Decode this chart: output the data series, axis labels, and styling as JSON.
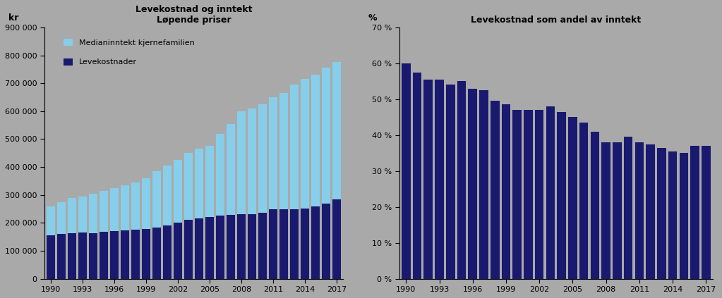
{
  "years": [
    1990,
    1991,
    1992,
    1993,
    1994,
    1995,
    1996,
    1997,
    1998,
    1999,
    2000,
    2001,
    2002,
    2003,
    2004,
    2005,
    2006,
    2007,
    2008,
    2009,
    2010,
    2011,
    2012,
    2013,
    2014,
    2015,
    2016,
    2017
  ],
  "median_income": [
    260000,
    275000,
    290000,
    295000,
    305000,
    315000,
    325000,
    335000,
    345000,
    360000,
    385000,
    405000,
    425000,
    450000,
    465000,
    475000,
    520000,
    555000,
    600000,
    610000,
    625000,
    650000,
    665000,
    695000,
    715000,
    730000,
    755000,
    775000
  ],
  "levekostnader": [
    155000,
    160000,
    162000,
    165000,
    163000,
    168000,
    170000,
    172000,
    175000,
    178000,
    183000,
    190000,
    200000,
    210000,
    215000,
    220000,
    225000,
    228000,
    230000,
    232000,
    235000,
    248000,
    250000,
    250000,
    252000,
    258000,
    270000,
    285000
  ],
  "ratio": [
    60.0,
    57.5,
    55.5,
    55.5,
    54.0,
    55.0,
    53.0,
    52.5,
    49.5,
    48.5,
    47.0,
    47.0,
    47.0,
    48.0,
    46.5,
    45.0,
    43.5,
    41.0,
    38.0,
    38.0,
    39.5,
    38.0,
    37.5,
    36.5,
    35.5,
    35.0,
    37.0,
    37.0
  ],
  "title1_line1": "Levekostnad og inntekt",
  "title1_line2": "Løpende priser",
  "title2": "Levekostnad som andel av inntekt",
  "unit1": "kr",
  "unit2": "%",
  "legend1": "Medianinntekt kjernefamilien",
  "legend2": "Levekostnader",
  "color_income": "#87CEEB",
  "color_leve": "#191970",
  "color_ratio": "#191970",
  "bg_color": "#A9A9A9",
  "ylim1": [
    0,
    900000
  ],
  "ylim2": [
    0,
    70
  ],
  "yticks1": [
    0,
    100000,
    200000,
    300000,
    400000,
    500000,
    600000,
    700000,
    800000,
    900000
  ],
  "yticks2": [
    0,
    10,
    20,
    30,
    40,
    50,
    60,
    70
  ],
  "xtick_years": [
    1990,
    1993,
    1996,
    1999,
    2002,
    2005,
    2008,
    2011,
    2014,
    2017
  ]
}
